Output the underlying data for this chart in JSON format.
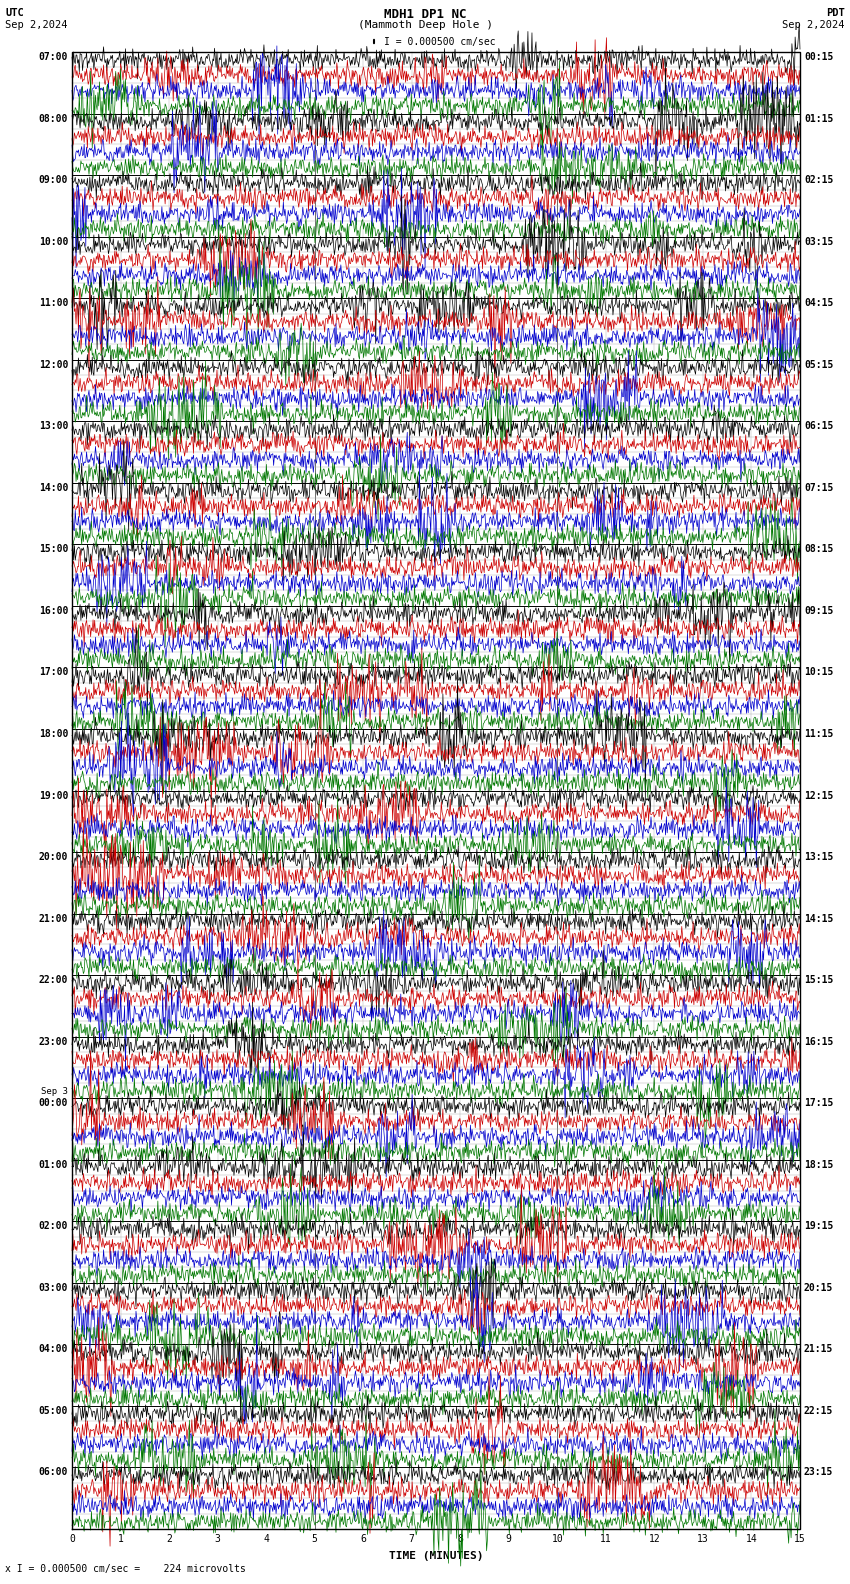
{
  "title_line1": "MDH1 DP1 NC",
  "title_line2": "(Mammoth Deep Hole )",
  "scale_label": "I = 0.000500 cm/sec",
  "footer_label": "x I = 0.000500 cm/sec =    224 microvolts",
  "left_header": "UTC",
  "left_date": "Sep 2,2024",
  "right_header": "PDT",
  "right_date": "Sep 2,2024",
  "utc_labels": [
    "07:00",
    "08:00",
    "09:00",
    "10:00",
    "11:00",
    "12:00",
    "13:00",
    "14:00",
    "15:00",
    "16:00",
    "17:00",
    "18:00",
    "19:00",
    "20:00",
    "21:00",
    "22:00",
    "23:00",
    "Sep 3\n00:00",
    "01:00",
    "02:00",
    "03:00",
    "04:00",
    "05:00",
    "06:00"
  ],
  "pdt_labels": [
    "00:15",
    "01:15",
    "02:15",
    "03:15",
    "04:15",
    "05:15",
    "06:15",
    "07:15",
    "08:15",
    "09:15",
    "10:15",
    "11:15",
    "12:15",
    "13:15",
    "14:15",
    "15:15",
    "16:15",
    "17:15",
    "18:15",
    "19:15",
    "20:15",
    "21:15",
    "22:15",
    "23:15"
  ],
  "n_hour_blocks": 24,
  "minutes_per_row": 15,
  "background_color": "#ffffff",
  "major_grid_color": "#555555",
  "minor_grid_color": "#aaaaaa",
  "border_color": "#000000",
  "trace_colors": [
    "#000000",
    "#cc0000",
    "#0000cc",
    "#007700"
  ],
  "trace_linewidth": 0.5,
  "font_size_labels": 7,
  "font_size_title": 9,
  "font_size_header": 7.5,
  "noise_scale": 0.008
}
